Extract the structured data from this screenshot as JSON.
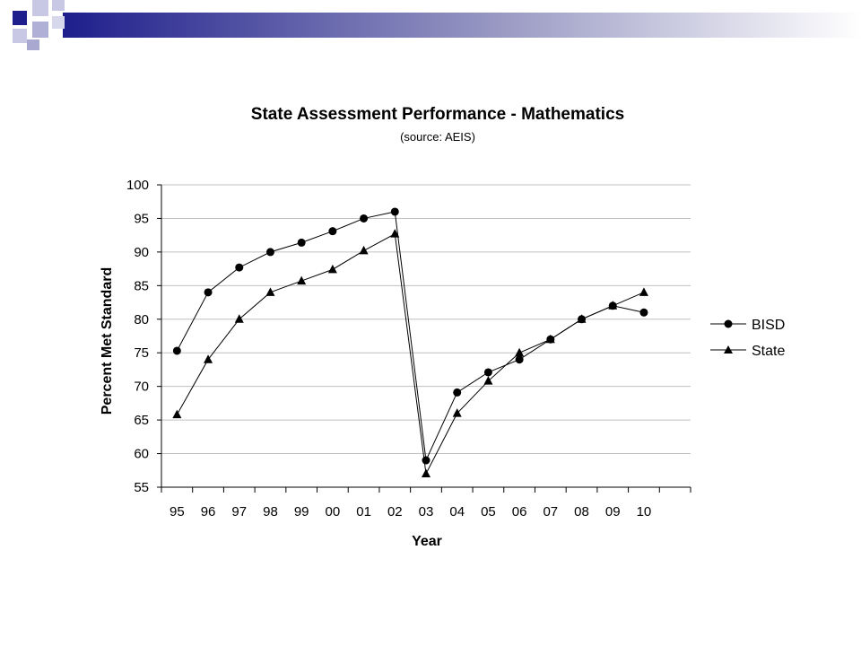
{
  "chart_data": {
    "type": "line",
    "title": "State Assessment Performance - Mathematics",
    "subtitle": "(source: AEIS)",
    "xlabel": "Year",
    "ylabel": "Percent Met Standard",
    "categories": [
      "95",
      "96",
      "97",
      "98",
      "99",
      "00",
      "01",
      "02",
      "03",
      "04",
      "05",
      "06",
      "07",
      "08",
      "09",
      "10"
    ],
    "ylim": [
      55,
      100
    ],
    "yticks": [
      55,
      60,
      65,
      70,
      75,
      80,
      85,
      90,
      95,
      100
    ],
    "grid": "horizontal",
    "legend_position": "right",
    "series": [
      {
        "name": "BISD",
        "marker": "circle",
        "values": [
          75.3,
          84,
          87.7,
          90,
          91.4,
          93.1,
          95,
          96,
          59,
          69.1,
          72.1,
          74,
          77,
          80,
          82,
          81
        ]
      },
      {
        "name": "State",
        "marker": "triangle",
        "values": [
          65.8,
          74,
          80,
          84,
          85.7,
          87.4,
          90.2,
          92.7,
          57,
          66,
          70.8,
          75,
          77,
          80,
          82,
          84
        ]
      }
    ]
  },
  "colors": {
    "line": "#000000",
    "grid": "#c0c0c0",
    "deco_dark": "#1e1e8c",
    "deco_light": "#a8a8d0"
  }
}
